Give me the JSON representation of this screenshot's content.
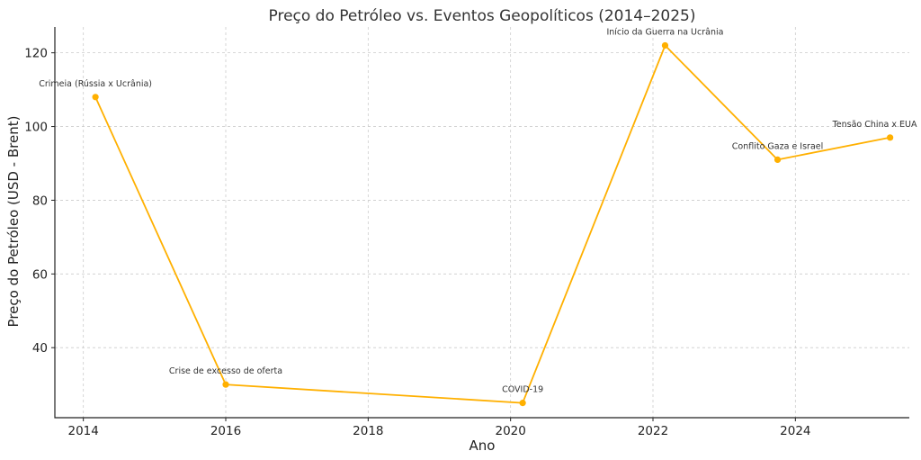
{
  "chart_data": {
    "type": "line",
    "title": "Preço do Petróleo vs. Eventos Geopolíticos (2014–2025)",
    "xlabel": "Ano",
    "ylabel": "Preço do Petróleo (USD - Brent)",
    "xlim": [
      2013.6,
      2025.6
    ],
    "ylim": [
      21,
      127
    ],
    "xticks": [
      2014,
      2016,
      2018,
      2020,
      2022,
      2024
    ],
    "yticks": [
      40,
      60,
      80,
      100,
      120
    ],
    "grid": true,
    "series": [
      {
        "color": "#FFB000",
        "x": [
          2014.17,
          2016.0,
          2020.17,
          2022.17,
          2023.75,
          2025.33
        ],
        "y": [
          108,
          30,
          25,
          122,
          91,
          97
        ]
      }
    ],
    "annotations": [
      {
        "text": "Crimeia (Rússia x Ucrânia)",
        "x": 2014.17,
        "y": 108
      },
      {
        "text": "Crise de excesso de oferta",
        "x": 2016.0,
        "y": 30
      },
      {
        "text": "COVID-19",
        "x": 2020.17,
        "y": 25
      },
      {
        "text": "Início da Guerra na Ucrânia",
        "x": 2022.17,
        "y": 122
      },
      {
        "text": "Conflito Gaza e Israel",
        "x": 2023.75,
        "y": 91
      },
      {
        "text": "Tensão China x EUA",
        "x": 2025.33,
        "y": 97
      }
    ]
  }
}
